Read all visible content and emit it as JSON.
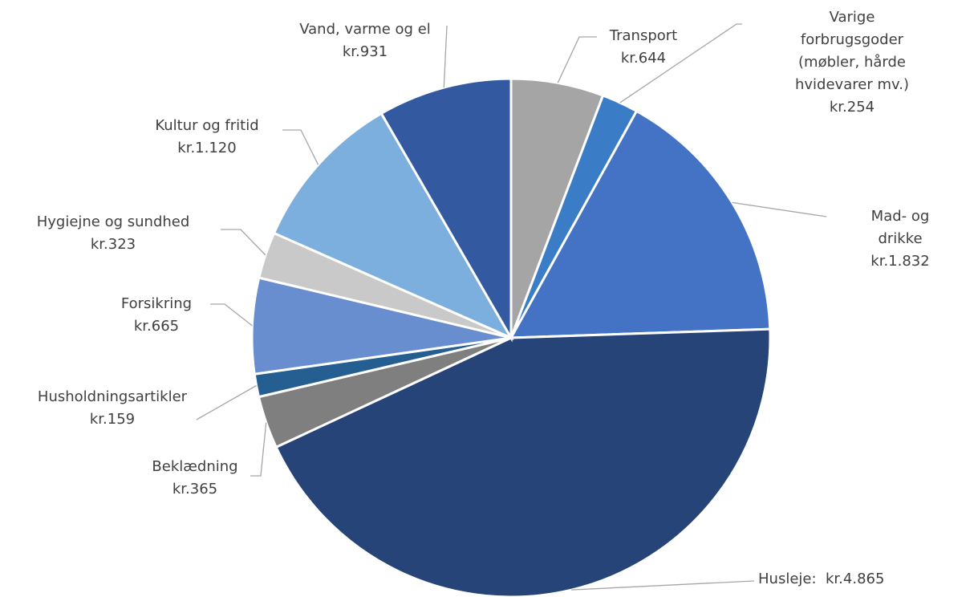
{
  "chart_data": {
    "type": "pie",
    "categories": [
      "Transport",
      "Varige forbrugsgoder\n(møbler, hårde\nhvidevarer mv.)",
      "Mad- og drikke",
      "Husleje:",
      "Beklædning",
      "Husholdningsartikler",
      "Forsikring",
      "Hygiejne og sundhed",
      "Kultur og fritid",
      "Vand, varme og el"
    ],
    "values": [
      644,
      254,
      1832,
      4865,
      365,
      159,
      665,
      323,
      1120,
      931
    ],
    "value_labels": [
      "kr.644",
      "kr.254",
      "kr.1.832",
      "kr.4.865",
      "kr.365",
      "kr.159",
      "kr.665",
      "kr.323",
      "kr.1.120",
      "kr.931"
    ],
    "colors": [
      "#a5a5a5",
      "#3a7cc6",
      "#4472c4",
      "#264478",
      "#7f7f7f",
      "#255e91",
      "#698ed0",
      "#c9c9c9",
      "#7cafdd",
      "#335aa1"
    ]
  }
}
